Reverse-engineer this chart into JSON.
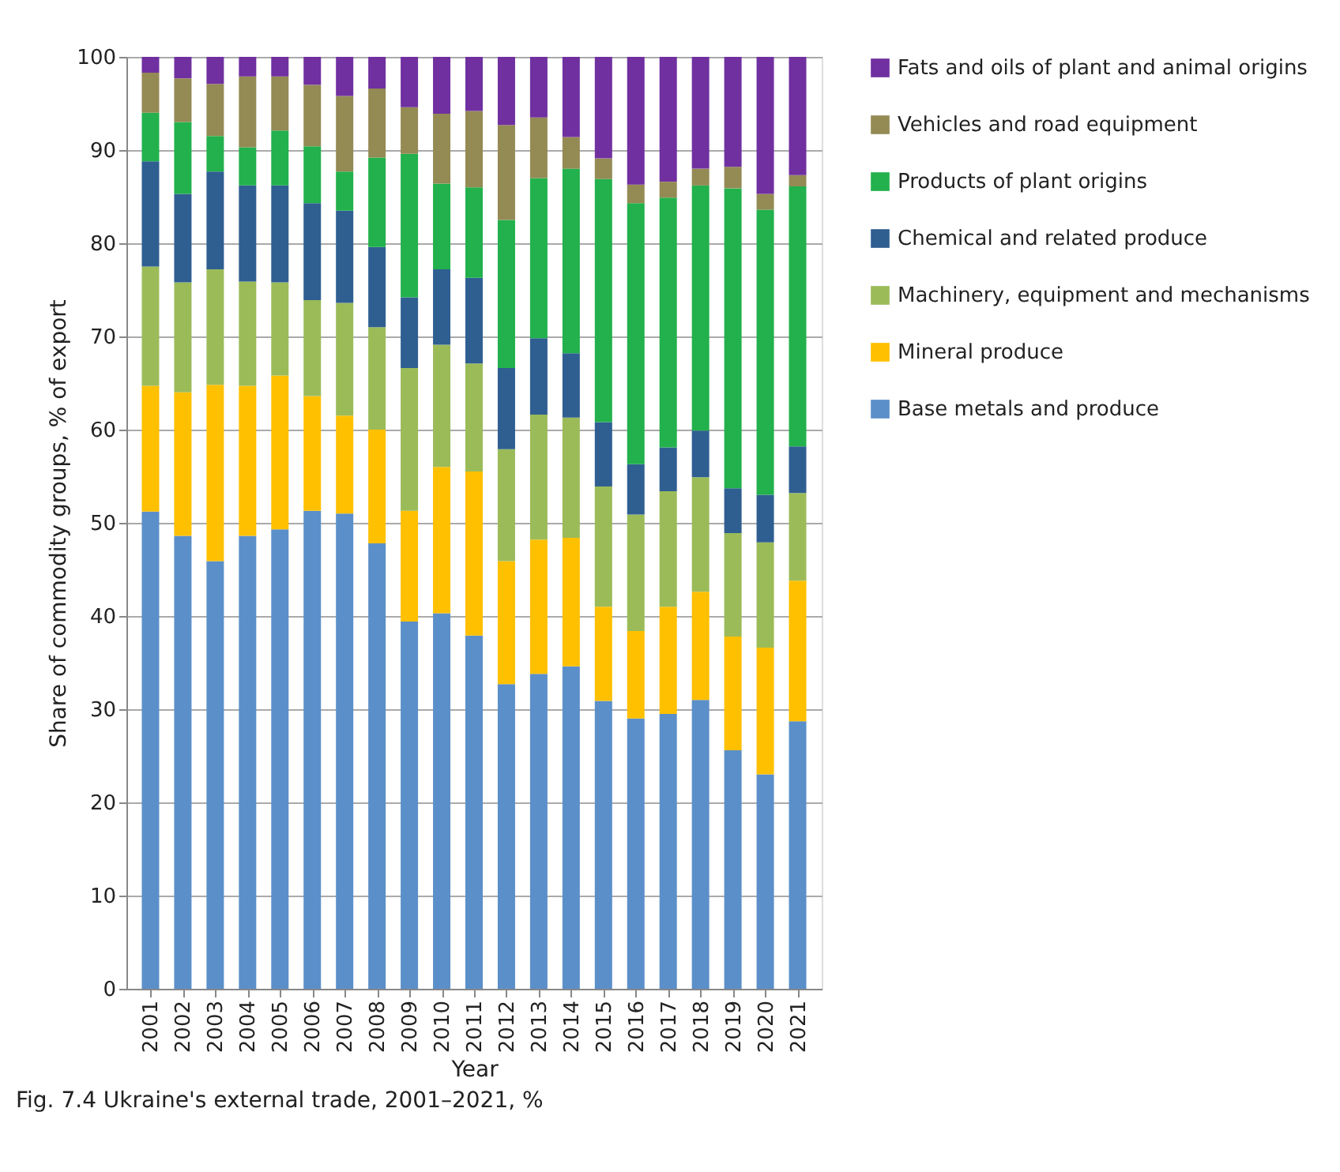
{
  "chart_data": {
    "type": "bar",
    "stacked": true,
    "xlabel": "Year",
    "ylabel": "Share of commodity groups, % of export",
    "categories": [
      "2001",
      "2002",
      "2003",
      "2004",
      "2005",
      "2006",
      "2007",
      "2008",
      "2009",
      "2010",
      "2011",
      "2012",
      "2013",
      "2014",
      "2015",
      "2016",
      "2017",
      "2018",
      "2019",
      "2020",
      "2021"
    ],
    "series": [
      {
        "name": "Base metals and produce",
        "color": "#5b8fc9",
        "values": [
          51.2,
          48.6,
          45.9,
          48.6,
          49.3,
          51.3,
          51.0,
          47.8,
          39.4,
          40.3,
          37.9,
          32.7,
          33.8,
          34.6,
          30.9,
          29.0,
          29.5,
          31.0,
          25.6,
          23.0,
          28.7
        ]
      },
      {
        "name": "Mineral produce",
        "color": "#ffc000",
        "values": [
          13.5,
          15.4,
          18.9,
          16.1,
          16.5,
          12.3,
          10.5,
          12.2,
          11.9,
          15.7,
          17.6,
          13.2,
          14.4,
          13.8,
          10.1,
          9.4,
          11.5,
          11.6,
          12.2,
          13.6,
          15.1
        ]
      },
      {
        "name": "Machinery, equipment and mechanisms",
        "color": "#9bbb59",
        "values": [
          12.8,
          11.8,
          12.4,
          11.2,
          10.0,
          10.3,
          12.1,
          11.0,
          15.3,
          13.1,
          11.6,
          12.0,
          13.4,
          12.9,
          12.9,
          12.5,
          12.4,
          12.3,
          11.1,
          11.3,
          9.4
        ]
      },
      {
        "name": "Chemical and related produce",
        "color": "#2f5f91",
        "values": [
          11.3,
          9.5,
          10.5,
          10.3,
          10.4,
          10.4,
          9.9,
          8.6,
          7.6,
          8.1,
          9.2,
          8.7,
          8.2,
          6.9,
          6.9,
          5.4,
          4.7,
          5.0,
          4.8,
          5.1,
          5.0
        ]
      },
      {
        "name": "Products of plant origins",
        "color": "#22b14c",
        "values": [
          5.2,
          7.7,
          3.8,
          4.1,
          5.9,
          6.1,
          4.2,
          9.6,
          15.4,
          9.2,
          9.7,
          15.9,
          17.2,
          19.8,
          26.1,
          28.0,
          26.8,
          26.3,
          32.2,
          30.6,
          27.9
        ]
      },
      {
        "name": "Vehicles and road equipment",
        "color": "#948a54",
        "values": [
          4.3,
          4.7,
          5.6,
          7.6,
          5.8,
          6.6,
          8.1,
          7.4,
          5.0,
          7.5,
          8.2,
          10.2,
          6.5,
          3.4,
          2.2,
          2.0,
          1.7,
          1.8,
          2.3,
          1.7,
          1.2
        ]
      },
      {
        "name": "Fats and oils of plant and animal origins",
        "color": "#7030a0",
        "values": [
          1.7,
          2.3,
          2.9,
          2.1,
          2.1,
          3.0,
          4.2,
          3.4,
          5.4,
          6.1,
          5.8,
          7.3,
          6.5,
          8.6,
          10.9,
          13.7,
          13.4,
          12.0,
          11.8,
          14.7,
          12.7
        ]
      }
    ],
    "ylim": [
      0,
      100
    ],
    "yticks": [
      0,
      10,
      20,
      30,
      40,
      50,
      60,
      70,
      80,
      90,
      100
    ],
    "grid": "y",
    "legend": "right",
    "annotations": [
      "Fig. 7.4 Ukraine's external trade, 2001–2021, %"
    ]
  }
}
